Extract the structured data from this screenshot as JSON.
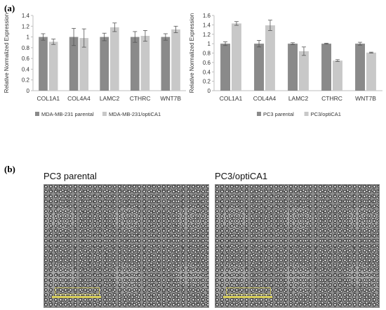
{
  "panels": {
    "a": {
      "label": "(a)"
    },
    "b": {
      "label": "(b)"
    }
  },
  "micrographs": [
    {
      "title": "PC3 parental"
    },
    {
      "title": "PC3/optiCA1"
    }
  ],
  "colors": {
    "parental": "#8a8a8a",
    "modified": "#c8c8c8",
    "axis": "#bfbfbf",
    "scale_bar": "#d9cf5a"
  },
  "chart_data": [
    {
      "type": "bar",
      "title": "",
      "xlabel": "",
      "ylabel": "Relative Normalized Expression",
      "ylim": [
        0,
        1.4
      ],
      "yticks": [
        "0",
        "0.2",
        "0.4",
        "0.6",
        "0.8",
        "1",
        "1.2",
        "1.4"
      ],
      "categories": [
        "COL1A1",
        "COL4A4",
        "LAMC2",
        "CTHRC",
        "WNT7B"
      ],
      "legend_position": "bottom",
      "series": [
        {
          "name": "MDA-MB-231 parental",
          "values": [
            1.0,
            1.0,
            1.0,
            1.0,
            1.0
          ],
          "errors": [
            0.06,
            0.16,
            0.07,
            0.1,
            0.06
          ]
        },
        {
          "name": "MDA-MB-231/optiCA1",
          "values": [
            0.91,
            0.98,
            1.18,
            1.02,
            1.14
          ],
          "errors": [
            0.05,
            0.17,
            0.08,
            0.1,
            0.06
          ]
        }
      ]
    },
    {
      "type": "bar",
      "title": "",
      "xlabel": "",
      "ylabel": "Relative Normalized Expression",
      "ylim": [
        0,
        1.6
      ],
      "yticks": [
        "0",
        "0.2",
        "0.4",
        "0.6",
        "0.8",
        "1",
        "1.2",
        "1.4",
        "1.6"
      ],
      "categories": [
        "COL1A1",
        "COL4A4",
        "LAMC2",
        "CTHRC",
        "WNT7B"
      ],
      "legend_position": "bottom",
      "series": [
        {
          "name": "PC3 parental",
          "values": [
            1.0,
            1.0,
            1.0,
            1.0,
            1.0
          ],
          "errors": [
            0.04,
            0.07,
            0.02,
            0.01,
            0.03
          ]
        },
        {
          "name": "PC3/optiCA1",
          "values": [
            1.43,
            1.39,
            0.84,
            0.64,
            0.81
          ],
          "errors": [
            0.04,
            0.11,
            0.09,
            0.02,
            0.01
          ]
        }
      ]
    }
  ]
}
